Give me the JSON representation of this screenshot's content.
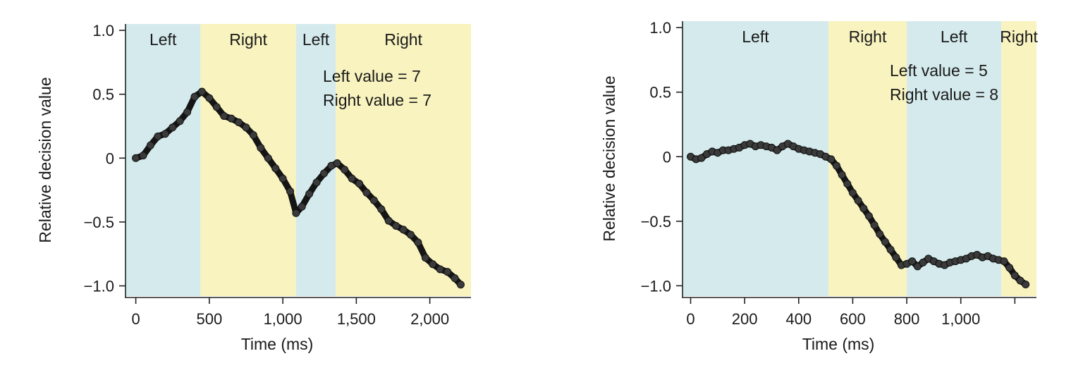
{
  "colors": {
    "left_region": "#d4eaec",
    "right_region": "#f8f3bf",
    "trace": "#151515"
  },
  "chart_data": [
    {
      "type": "line",
      "xlabel": "Time (ms)",
      "ylabel": "Relative decision value",
      "xlim": [
        -70,
        2280
      ],
      "ylim": [
        -1.08,
        1.05
      ],
      "xticks": [
        0,
        500,
        1000,
        1500,
        2000
      ],
      "xtick_labels": [
        "0",
        "500",
        "1,000",
        "1,500",
        "2,000"
      ],
      "yticks": [
        1.0,
        0.5,
        0,
        -0.5,
        -1.0
      ],
      "ytick_labels": [
        "1.0",
        "0.5",
        "0",
        "−0.5",
        "−1.0"
      ],
      "regions": [
        {
          "label": "Left",
          "side": "left",
          "start": -70,
          "end": 440
        },
        {
          "label": "Right",
          "side": "right",
          "start": 440,
          "end": 1090
        },
        {
          "label": "Left",
          "side": "left",
          "start": 1090,
          "end": 1360
        },
        {
          "label": "Right",
          "side": "right",
          "start": 1360,
          "end": 2280
        }
      ],
      "annotations": [
        "Left value = 7",
        "Right value = 7"
      ],
      "series": [
        {
          "x": [
            0,
            50,
            100,
            150,
            200,
            250,
            300,
            350,
            400,
            450,
            500,
            550,
            600,
            650,
            700,
            750,
            800,
            850,
            900,
            950,
            1000,
            1050,
            1090,
            1130,
            1180,
            1230,
            1280,
            1330,
            1370,
            1420,
            1470,
            1520,
            1570,
            1620,
            1670,
            1720,
            1770,
            1820,
            1870,
            1920,
            1970,
            2020,
            2070,
            2120,
            2170,
            2210
          ],
          "y": [
            0.0,
            0.02,
            0.1,
            0.17,
            0.19,
            0.24,
            0.29,
            0.36,
            0.48,
            0.52,
            0.47,
            0.4,
            0.33,
            0.31,
            0.28,
            0.24,
            0.18,
            0.08,
            0.0,
            -0.08,
            -0.16,
            -0.26,
            -0.43,
            -0.38,
            -0.28,
            -0.19,
            -0.12,
            -0.06,
            -0.04,
            -0.09,
            -0.16,
            -0.2,
            -0.27,
            -0.33,
            -0.4,
            -0.49,
            -0.53,
            -0.56,
            -0.6,
            -0.66,
            -0.78,
            -0.83,
            -0.87,
            -0.89,
            -0.94,
            -0.99
          ]
        }
      ]
    },
    {
      "type": "line",
      "xlabel": "Time (ms)",
      "ylabel": "Relative decision value",
      "xlim": [
        -30,
        1280
      ],
      "ylim": [
        -1.08,
        1.05
      ],
      "xticks": [
        0,
        200,
        400,
        600,
        800,
        1000,
        1200
      ],
      "xtick_labels": [
        "0",
        "200",
        "400",
        "600",
        "800",
        "1,000",
        ""
      ],
      "yticks": [
        1.0,
        0.5,
        0,
        -0.5,
        -1.0
      ],
      "ytick_labels": [
        "1.0",
        "0.5",
        "0",
        "−0.5",
        "−1.0"
      ],
      "regions": [
        {
          "label": "Left",
          "side": "left",
          "start": -30,
          "end": 510
        },
        {
          "label": "Right",
          "side": "right",
          "start": 510,
          "end": 800
        },
        {
          "label": "Left",
          "side": "left",
          "start": 800,
          "end": 1150
        },
        {
          "label": "Right",
          "side": "right",
          "start": 1150,
          "end": 1280
        }
      ],
      "annotations": [
        "Left value = 5",
        "Right value = 8"
      ],
      "series": [
        {
          "x": [
            0,
            20,
            40,
            60,
            80,
            100,
            120,
            140,
            160,
            180,
            200,
            220,
            240,
            260,
            280,
            300,
            320,
            340,
            360,
            380,
            400,
            420,
            440,
            460,
            480,
            500,
            520,
            540,
            560,
            580,
            600,
            620,
            640,
            660,
            680,
            700,
            720,
            740,
            760,
            780,
            800,
            820,
            840,
            860,
            880,
            900,
            920,
            940,
            960,
            980,
            1000,
            1020,
            1040,
            1060,
            1080,
            1100,
            1120,
            1140,
            1160,
            1180,
            1200,
            1220,
            1240
          ],
          "y": [
            0.0,
            -0.02,
            -0.01,
            0.02,
            0.04,
            0.03,
            0.05,
            0.05,
            0.06,
            0.07,
            0.09,
            0.1,
            0.08,
            0.09,
            0.08,
            0.07,
            0.05,
            0.08,
            0.1,
            0.08,
            0.06,
            0.05,
            0.04,
            0.03,
            0.02,
            0.0,
            -0.02,
            -0.07,
            -0.14,
            -0.21,
            -0.28,
            -0.34,
            -0.4,
            -0.46,
            -0.53,
            -0.6,
            -0.66,
            -0.72,
            -0.78,
            -0.84,
            -0.83,
            -0.81,
            -0.85,
            -0.82,
            -0.79,
            -0.81,
            -0.83,
            -0.84,
            -0.82,
            -0.81,
            -0.8,
            -0.79,
            -0.77,
            -0.76,
            -0.78,
            -0.77,
            -0.79,
            -0.8,
            -0.81,
            -0.86,
            -0.92,
            -0.96,
            -0.99
          ]
        }
      ]
    }
  ]
}
